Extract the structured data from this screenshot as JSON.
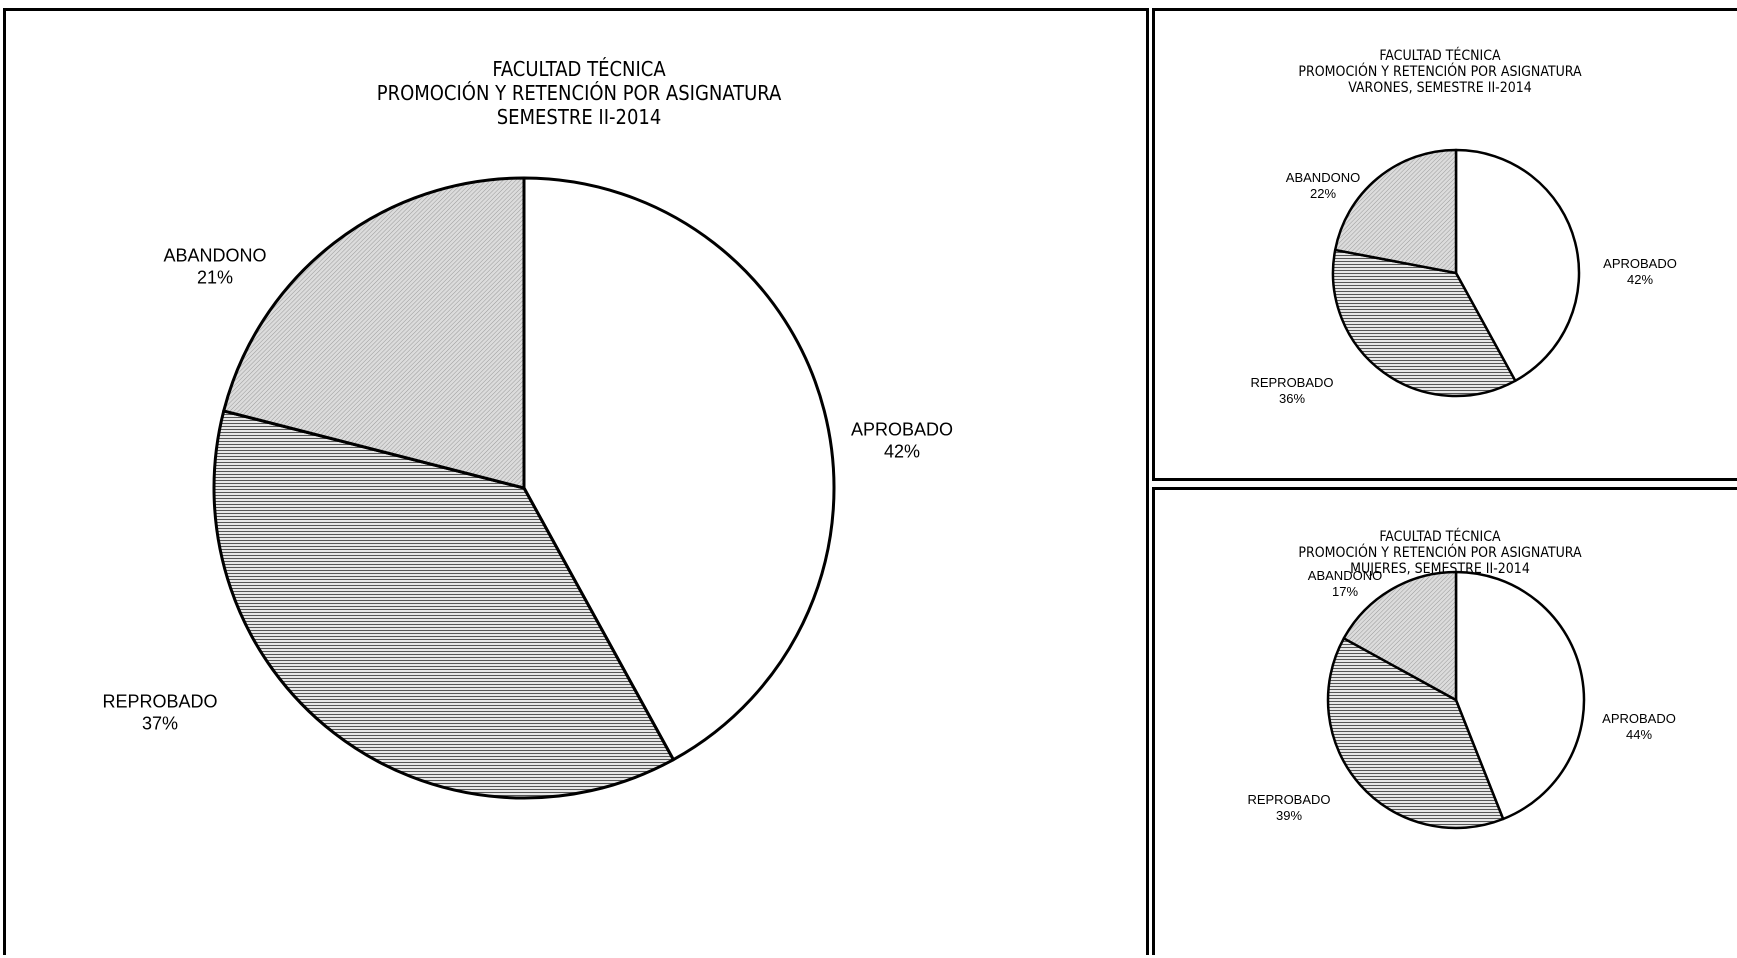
{
  "chart_data": [
    {
      "type": "pie",
      "title_lines": [
        "FACULTAD TÉCNICA",
        "PROMOCIÓN Y RETENCIÓN POR ASIGNATURA",
        "SEMESTRE II-2014"
      ],
      "slices": [
        {
          "label": "APROBADO",
          "value": 42,
          "value_label": "42%",
          "pattern": "none"
        },
        {
          "label": "REPROBADO",
          "value": 37,
          "value_label": "37%",
          "pattern": "horizontal"
        },
        {
          "label": "ABANDONO",
          "value": 21,
          "value_label": "21%",
          "pattern": "diagonal"
        }
      ]
    },
    {
      "type": "pie",
      "title_lines": [
        "FACULTAD TÉCNICA",
        "PROMOCIÓN Y RETENCIÓN POR ASIGNATURA",
        "VARONES, SEMESTRE II-2014"
      ],
      "slices": [
        {
          "label": "APROBADO",
          "value": 42,
          "value_label": "42%",
          "pattern": "none"
        },
        {
          "label": "REPROBADO",
          "value": 36,
          "value_label": "36%",
          "pattern": "horizontal"
        },
        {
          "label": "ABANDONO",
          "value": 22,
          "value_label": "22%",
          "pattern": "diagonal"
        }
      ]
    },
    {
      "type": "pie",
      "title_lines": [
        "FACULTAD TÉCNICA",
        "PROMOCIÓN Y RETENCIÓN POR ASIGNATURA",
        "MUJERES, SEMESTRE II-2014"
      ],
      "slices": [
        {
          "label": "APROBADO",
          "value": 44,
          "value_label": "44%",
          "pattern": "none"
        },
        {
          "label": "REPROBADO",
          "value": 39,
          "value_label": "39%",
          "pattern": "horizontal"
        },
        {
          "label": "ABANDONO",
          "value": 17,
          "value_label": "17%",
          "pattern": "diagonal"
        }
      ]
    }
  ]
}
